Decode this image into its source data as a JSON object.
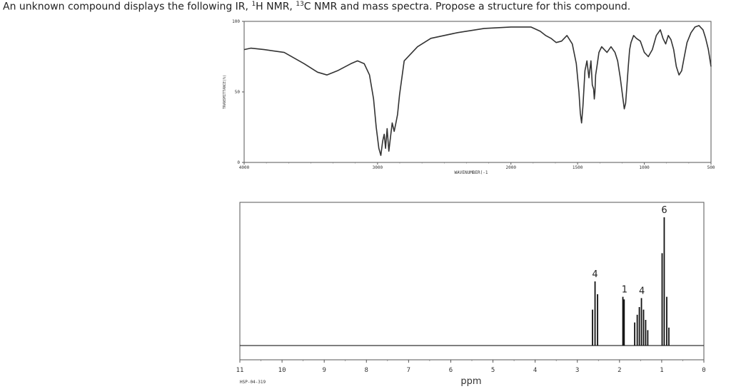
{
  "question": {
    "p1": "An unknown compound displays the following IR, ",
    "sup1": "1",
    "p2": "H NMR, ",
    "sup2": "13",
    "p3": "C NMR and mass spectra. Propose a structure for this compound."
  },
  "chart_data": [
    {
      "type": "line",
      "name": "ir-spectrum",
      "xlabel": "WAVENUMBER(-1",
      "ylabel": "TRANSMITTANCE(%)",
      "xlim": [
        4000,
        500
      ],
      "ylim": [
        0,
        100
      ],
      "x_ticks": [
        4000,
        3000,
        2000,
        1500,
        1000,
        500
      ],
      "y_ticks": [
        0,
        50,
        100
      ],
      "x_tick_labels": [
        "4000",
        "3000",
        "2000",
        "1500",
        "1000",
        "500"
      ],
      "y_tick_labels": [
        "0",
        "50",
        "100"
      ],
      "series": [
        {
          "x": [
            4000,
            3950,
            3850,
            3700,
            3550,
            3450,
            3380,
            3300,
            3200,
            3150,
            3100,
            3060,
            3030,
            3010,
            2990,
            2975,
            2962,
            2950,
            2940,
            2928,
            2915,
            2900,
            2890,
            2875,
            2862,
            2850,
            2835,
            2800,
            2700,
            2600,
            2400,
            2200,
            2000,
            1850,
            1780,
            1740,
            1700,
            1660,
            1620,
            1580,
            1540,
            1510,
            1490,
            1480,
            1470,
            1460,
            1445,
            1430,
            1415,
            1400,
            1390,
            1380,
            1375,
            1370,
            1365,
            1355,
            1340,
            1320,
            1300,
            1280,
            1250,
            1220,
            1200,
            1180,
            1160,
            1150,
            1140,
            1130,
            1120,
            1110,
            1100,
            1080,
            1060,
            1030,
            1000,
            970,
            940,
            910,
            880,
            860,
            840,
            820,
            800,
            780,
            760,
            740,
            720,
            700,
            680,
            650,
            620,
            590,
            560,
            540,
            520,
            500
          ],
          "y": [
            80,
            81,
            80,
            78,
            70,
            64,
            62,
            65,
            70,
            72,
            70,
            62,
            45,
            25,
            10,
            5,
            15,
            20,
            10,
            24,
            8,
            20,
            28,
            22,
            28,
            34,
            48,
            72,
            82,
            88,
            92,
            95,
            96,
            96,
            93,
            90,
            88,
            85,
            86,
            90,
            84,
            70,
            50,
            35,
            28,
            40,
            65,
            72,
            60,
            72,
            55,
            52,
            45,
            50,
            62,
            68,
            78,
            82,
            80,
            78,
            82,
            78,
            72,
            60,
            45,
            38,
            42,
            55,
            68,
            80,
            85,
            90,
            88,
            86,
            78,
            75,
            80,
            90,
            94,
            88,
            84,
            90,
            87,
            80,
            68,
            62,
            65,
            75,
            85,
            92,
            96,
            97,
            94,
            88,
            80,
            68
          ]
        }
      ]
    },
    {
      "type": "line",
      "name": "h-nmr-spectrum",
      "xlabel": "ppm",
      "xlim": [
        11,
        0
      ],
      "x_ticks": [
        11,
        10,
        9,
        8,
        7,
        6,
        5,
        4,
        3,
        2,
        1,
        0
      ],
      "x_tick_labels": [
        "11",
        "10",
        "9",
        "8",
        "7",
        "6",
        "5",
        "4",
        "3",
        "2",
        "1",
        "0"
      ],
      "footnote": "HSP-04-319",
      "peaks": [
        {
          "ppm": 2.64,
          "height": 0.28
        },
        {
          "ppm": 2.58,
          "height": 0.5
        },
        {
          "ppm": 2.52,
          "height": 0.4
        },
        {
          "ppm": 1.92,
          "height": 0.38
        },
        {
          "ppm": 1.89,
          "height": 0.36
        },
        {
          "ppm": 1.64,
          "height": 0.18
        },
        {
          "ppm": 1.58,
          "height": 0.24
        },
        {
          "ppm": 1.53,
          "height": 0.3
        },
        {
          "ppm": 1.48,
          "height": 0.37
        },
        {
          "ppm": 1.43,
          "height": 0.28
        },
        {
          "ppm": 1.38,
          "height": 0.2
        },
        {
          "ppm": 1.33,
          "height": 0.12
        },
        {
          "ppm": 0.99,
          "height": 0.72
        },
        {
          "ppm": 0.94,
          "height": 1.0
        },
        {
          "ppm": 0.88,
          "height": 0.38
        },
        {
          "ppm": 0.83,
          "height": 0.14
        }
      ],
      "integration_labels": [
        {
          "ppm": 2.58,
          "text": "4"
        },
        {
          "ppm": 1.88,
          "text": "1"
        },
        {
          "ppm": 1.47,
          "text": "4"
        },
        {
          "ppm": 0.94,
          "text": "6"
        }
      ]
    }
  ]
}
